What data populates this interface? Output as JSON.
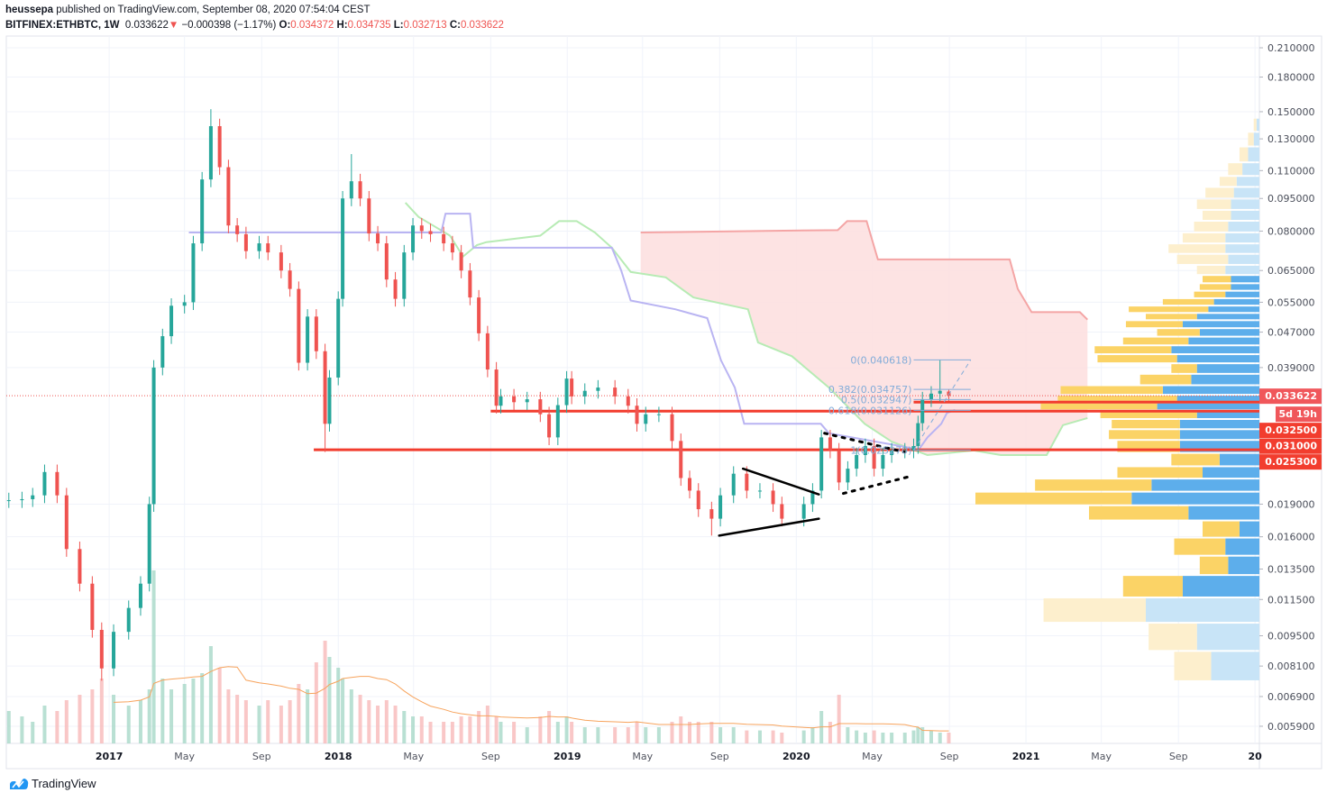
{
  "header": {
    "author": "heussepa",
    "published_text": "published on TradingView.com, September 08, 2020 07:54:04 CEST",
    "symbol": "BITFINEX:ETHBTC, 1W",
    "last": "0.033622",
    "change": "−0.000398 (−1.17%)",
    "o_label": "O:",
    "o": "0.034372",
    "h_label": "H:",
    "h": "0.034735",
    "l_label": "L:",
    "l": "0.032713",
    "c_label": "C:",
    "c": "0.033622"
  },
  "footer": {
    "brand": "TradingView"
  },
  "colors": {
    "up": "#26a69a",
    "down": "#ef5350",
    "vol_up": "#a8d8c8",
    "vol_down": "#f7b9b9",
    "vol_ma": "#f7a35c",
    "kijun": "#b9b4f2",
    "span_b": "#b7ebb4",
    "span_a": "#f4a5a5",
    "cloud": "#fde0e0",
    "level": "#f23d2e",
    "profile_up": "#5daeeb",
    "profile_down": "#fbd366",
    "profile_up_light": "#c8e4f7",
    "profile_down_light": "#fdefcd",
    "fib": "#82acd9"
  },
  "chart_data": {
    "type": "candlestick",
    "scale": "log",
    "xlim": [
      "2016-07-21",
      "2022-01-08"
    ],
    "ylim": [
      0.00539,
      0.2234
    ],
    "grid": true,
    "y_ticks": [
      "0.210000",
      "0.180000",
      "0.150000",
      "0.130000",
      "0.110000",
      "0.095000",
      "0.080000",
      "0.065000",
      "0.055000",
      "0.047000",
      "0.039000",
      "0.019000",
      "0.016000",
      "0.013500",
      "0.011500",
      "0.009500",
      "0.008100",
      "0.006900",
      "0.005900"
    ],
    "x_ticks": [
      {
        "date": "2017-01-01",
        "label": "2017",
        "year": true
      },
      {
        "date": "2017-05-01",
        "label": "May"
      },
      {
        "date": "2017-09-01",
        "label": "Sep"
      },
      {
        "date": "2018-01-01",
        "label": "2018",
        "year": true
      },
      {
        "date": "2018-05-01",
        "label": "May"
      },
      {
        "date": "2018-09-01",
        "label": "Sep"
      },
      {
        "date": "2019-01-01",
        "label": "2019",
        "year": true
      },
      {
        "date": "2019-05-01",
        "label": "May"
      },
      {
        "date": "2019-09-01",
        "label": "Sep"
      },
      {
        "date": "2020-01-01",
        "label": "2020",
        "year": true
      },
      {
        "date": "2020-05-01",
        "label": "May"
      },
      {
        "date": "2020-09-01",
        "label": "Sep"
      },
      {
        "date": "2021-01-01",
        "label": "2021",
        "year": true
      },
      {
        "date": "2021-05-01",
        "label": "May"
      },
      {
        "date": "2021-09-01",
        "label": "Sep"
      },
      {
        "date": "2022-01-01",
        "label": "20",
        "year": true
      }
    ],
    "candles_columns": [
      "date",
      "close",
      "volume",
      "high",
      "low"
    ],
    "candles": [
      [
        "2016-07-25",
        0.0194,
        30
      ],
      [
        "2016-08-15",
        0.0195,
        25
      ],
      [
        "2016-09-01",
        0.0199,
        20
      ],
      [
        "2016-09-20",
        0.0225,
        35
      ],
      [
        "2016-10-10",
        0.0199,
        30
      ],
      [
        "2016-10-25",
        0.015,
        40
      ],
      [
        "2016-11-15",
        0.0125,
        45
      ],
      [
        "2016-12-05",
        0.0098,
        50
      ],
      [
        "2016-12-20",
        0.008,
        60,
        null,
        0.0075
      ],
      [
        "2017-01-08",
        0.0097,
        45
      ],
      [
        "2017-02-01",
        0.011,
        35
      ],
      [
        "2017-02-20",
        0.0125,
        40
      ],
      [
        "2017-03-06",
        0.019,
        50
      ],
      [
        "2017-03-13",
        0.039,
        160
      ],
      [
        "2017-03-27",
        0.046,
        60
      ],
      [
        "2017-04-10",
        0.054,
        50
      ],
      [
        "2017-05-01",
        0.055,
        55
      ],
      [
        "2017-05-15",
        0.075,
        60
      ],
      [
        "2017-05-29",
        0.105,
        65
      ],
      [
        "2017-06-12",
        0.139,
        90,
        0.152
      ],
      [
        "2017-06-26",
        0.112,
        70
      ],
      [
        "2017-07-10",
        0.0824,
        50
      ],
      [
        "2017-07-24",
        0.0787,
        45
      ],
      [
        "2017-08-07",
        0.072,
        40
      ],
      [
        "2017-08-28",
        0.075,
        35
      ],
      [
        "2017-09-11",
        0.0715,
        40
      ],
      [
        "2017-10-02",
        0.065,
        35
      ],
      [
        "2017-10-16",
        0.059,
        40
      ],
      [
        "2017-10-30",
        0.04,
        55
      ],
      [
        "2017-11-13",
        0.051,
        50
      ],
      [
        "2017-11-27",
        0.0425,
        75
      ],
      [
        "2017-12-11",
        0.029,
        95,
        null,
        0.025
      ],
      [
        "2017-12-18",
        0.037,
        80
      ],
      [
        "2018-01-01",
        0.056,
        70
      ],
      [
        "2018-01-08",
        0.095,
        60
      ],
      [
        "2018-01-22",
        0.104,
        50,
        0.12
      ],
      [
        "2018-02-05",
        0.095,
        45
      ],
      [
        "2018-02-19",
        0.079,
        40
      ],
      [
        "2018-03-05",
        0.075,
        35
      ],
      [
        "2018-03-19",
        0.062,
        40
      ],
      [
        "2018-04-02",
        0.056,
        35
      ],
      [
        "2018-04-16",
        0.0715,
        30
      ],
      [
        "2018-04-30",
        0.0824,
        25
      ],
      [
        "2018-05-14",
        0.08,
        25
      ],
      [
        "2018-05-28",
        0.0787,
        20
      ],
      [
        "2018-06-18",
        0.075,
        20
      ],
      [
        "2018-07-02",
        0.0715,
        20
      ],
      [
        "2018-07-16",
        0.065,
        25
      ],
      [
        "2018-07-30",
        0.0564,
        25
      ],
      [
        "2018-08-13",
        0.0467,
        30
      ],
      [
        "2018-08-27",
        0.0386,
        35
      ],
      [
        "2018-09-10",
        0.0319,
        25
      ],
      [
        "2018-09-17",
        0.0335,
        20
      ],
      [
        "2018-10-08",
        0.0325,
        20
      ],
      [
        "2018-10-29",
        0.033,
        15
      ],
      [
        "2018-11-19",
        0.0305,
        25
      ],
      [
        "2018-12-03",
        0.027,
        30
      ],
      [
        "2018-12-17",
        0.032,
        20
      ],
      [
        "2018-12-31",
        0.0368,
        25
      ],
      [
        "2019-01-08",
        0.0335,
        20
      ],
      [
        "2019-01-29",
        0.0345,
        15
      ],
      [
        "2019-02-19",
        0.0351,
        15
      ],
      [
        "2019-03-18",
        0.0335,
        15
      ],
      [
        "2019-04-08",
        0.0319,
        15
      ],
      [
        "2019-04-22",
        0.029,
        20
      ],
      [
        "2019-05-06",
        0.0305,
        15
      ],
      [
        "2019-05-27",
        0.0305,
        15
      ],
      [
        "2019-06-17",
        0.0265,
        20
      ],
      [
        "2019-07-01",
        0.0218,
        25
      ],
      [
        "2019-07-15",
        0.0204,
        20
      ],
      [
        "2019-07-29",
        0.0185,
        20
      ],
      [
        "2019-08-19",
        0.0176,
        20,
        null,
        0.0161
      ],
      [
        "2019-09-02",
        0.0199,
        15
      ],
      [
        "2019-09-23",
        0.0223,
        15
      ],
      [
        "2019-10-14",
        0.0204,
        12
      ],
      [
        "2019-11-04",
        0.0204,
        12
      ],
      [
        "2019-11-25",
        0.019,
        12
      ],
      [
        "2019-12-09",
        0.0176,
        10
      ],
      [
        "2020-01-13",
        0.019,
        12
      ],
      [
        "2020-01-27",
        0.0204,
        15
      ],
      [
        "2020-02-10",
        0.027,
        30
      ],
      [
        "2020-02-24",
        0.0252,
        20
      ],
      [
        "2020-03-09",
        0.0213,
        45
      ],
      [
        "2020-03-23",
        0.0229,
        15
      ],
      [
        "2020-04-06",
        0.0246,
        12
      ],
      [
        "2020-04-20",
        0.0258,
        10
      ],
      [
        "2020-05-04",
        0.0229,
        12
      ],
      [
        "2020-05-18",
        0.0246,
        10
      ],
      [
        "2020-06-01",
        0.0252,
        10
      ],
      [
        "2020-06-22",
        0.0252,
        10
      ],
      [
        "2020-07-06",
        0.0258,
        12
      ],
      [
        "2020-07-13",
        0.0291,
        15
      ],
      [
        "2020-07-20",
        0.033,
        15
      ],
      [
        "2020-08-03",
        0.034,
        12
      ],
      [
        "2020-08-17",
        0.0345,
        10,
        0.040618
      ],
      [
        "2020-08-31",
        0.033622,
        10,
        0.034735,
        0.032713,
        0.034372
      ]
    ],
    "current_price": 0.033622,
    "current_price_label": "0.033622",
    "countdown_label": "5d 19h",
    "kijun": [
      [
        "2017-05-08",
        0.0794
      ],
      [
        "2018-06-14",
        0.0794
      ],
      [
        "2018-06-21",
        0.0877
      ],
      [
        "2018-07-30",
        0.0877
      ],
      [
        "2018-08-04",
        0.0733
      ],
      [
        "2019-03-13",
        0.0733
      ],
      [
        "2019-03-28",
        0.065
      ],
      [
        "2019-04-12",
        0.0555
      ],
      [
        "2019-06-22",
        0.053
      ],
      [
        "2019-08-12",
        0.0506
      ],
      [
        "2019-09-03",
        0.0405
      ],
      [
        "2019-09-25",
        0.0351
      ],
      [
        "2019-10-10",
        0.029
      ],
      [
        "2020-02-09",
        0.029
      ],
      [
        "2020-02-22",
        0.0276
      ],
      [
        "2020-06-15",
        0.0258
      ],
      [
        "2020-07-14",
        0.0253
      ],
      [
        "2020-07-28",
        0.027
      ],
      [
        "2020-08-19",
        0.029
      ],
      [
        "2020-08-28",
        0.0307
      ],
      [
        "2020-09-10",
        0.0312
      ]
    ],
    "span_b": [
      [
        "2018-04-18",
        0.0929
      ],
      [
        "2018-05-09",
        0.0862
      ],
      [
        "2018-06-01",
        0.0824
      ],
      [
        "2018-06-28",
        0.0781
      ],
      [
        "2018-07-19",
        0.07
      ],
      [
        "2018-08-10",
        0.0743
      ],
      [
        "2018-08-25",
        0.0755
      ],
      [
        "2018-11-19",
        0.0781
      ],
      [
        "2018-12-19",
        0.0843
      ],
      [
        "2019-01-16",
        0.0843
      ],
      [
        "2019-02-14",
        0.0794
      ],
      [
        "2019-03-13",
        0.0733
      ],
      [
        "2019-04-12",
        0.0645
      ],
      [
        "2019-04-28",
        0.064
      ],
      [
        "2019-06-07",
        0.0627
      ],
      [
        "2019-07-21",
        0.0564
      ],
      [
        "2019-10-16",
        0.053
      ],
      [
        "2019-11-01",
        0.0445
      ],
      [
        "2019-12-25",
        0.0414
      ],
      [
        "2020-02-22",
        0.0351
      ],
      [
        "2020-04-19",
        0.029
      ],
      [
        "2020-06-01",
        0.0264
      ],
      [
        "2020-07-28",
        0.0246
      ],
      [
        "2020-10-10",
        0.0252
      ],
      [
        "2020-11-22",
        0.0246
      ],
      [
        "2021-02-03",
        0.0246
      ],
      [
        "2021-03-01",
        0.0288
      ],
      [
        "2021-04-09",
        0.0299
      ]
    ],
    "span_a": [
      [
        "2019-04-28",
        0.0794
      ],
      [
        "2019-11-13",
        0.0801
      ],
      [
        "2020-03-07",
        0.0804
      ],
      [
        "2020-03-22",
        0.0843
      ],
      [
        "2020-04-22",
        0.0843
      ],
      [
        "2020-05-10",
        0.0689
      ],
      [
        "2020-12-06",
        0.0689
      ],
      [
        "2020-12-19",
        0.059
      ],
      [
        "2021-01-10",
        0.0522
      ],
      [
        "2021-03-28",
        0.0522
      ],
      [
        "2021-04-09",
        0.0502
      ]
    ],
    "horizontal_levels": [
      {
        "price": 0.0325,
        "label": "0.032500",
        "from": "2020-07-06"
      },
      {
        "price": 0.031,
        "label": "0.031000",
        "from": "2018-09-01"
      },
      {
        "price": 0.0253,
        "label": "0.025300",
        "from": "2017-11-23"
      }
    ],
    "trendlines": [
      {
        "style": "solid",
        "points": [
          [
            "2019-10-08",
            0.0229
          ],
          [
            "2020-02-06",
            0.02
          ]
        ]
      },
      {
        "style": "solid",
        "points": [
          [
            "2019-08-31",
            0.0161
          ],
          [
            "2020-02-06",
            0.0176
          ]
        ]
      },
      {
        "style": "dotted",
        "points": [
          [
            "2020-02-15",
            0.0276
          ],
          [
            "2020-06-21",
            0.025
          ]
        ]
      },
      {
        "style": "dotted",
        "points": [
          [
            "2020-03-16",
            0.0201
          ],
          [
            "2020-07-01",
            0.022
          ]
        ]
      }
    ],
    "fibonacci": {
      "from": "2020-07-06",
      "to": "2020-10-05",
      "diagonal": [
        [
          "2020-07-06",
          0.02527
        ],
        [
          "2020-10-05",
          0.040618
        ]
      ],
      "levels": [
        {
          "ratio": "0",
          "price": 0.040618,
          "label": "0(0.040618)"
        },
        {
          "ratio": "0.382",
          "price": 0.034757,
          "label": "0.382(0.034757)"
        },
        {
          "ratio": "0.5",
          "price": 0.032947,
          "label": "0.5(0.032947)"
        },
        {
          "ratio": "0.618",
          "price": 0.031126,
          "label": "0.618(0.031126)"
        },
        {
          "ratio": "1",
          "price": 0.02527,
          "label": "1(0.025270)"
        }
      ]
    },
    "volume_profile_columns": [
      "price",
      "up_volume_pct",
      "down_volume_pct",
      "value_area"
    ],
    "volume_profile": [
      [
        0.0081,
        17,
        13,
        false
      ],
      [
        0.0095,
        22,
        17,
        false
      ],
      [
        0.0109,
        40,
        36,
        false
      ],
      [
        0.0124,
        27,
        21,
        true
      ],
      [
        0.0138,
        11,
        10,
        true
      ],
      [
        0.0152,
        12,
        18,
        true
      ],
      [
        0.0167,
        7,
        13,
        true
      ],
      [
        0.0182,
        25,
        35,
        true
      ],
      [
        0.0196,
        45,
        55,
        true
      ],
      [
        0.021,
        38,
        41,
        true
      ],
      [
        0.0225,
        20,
        30,
        true
      ],
      [
        0.0239,
        14,
        17,
        true
      ],
      [
        0.0259,
        28,
        22,
        true
      ],
      [
        0.0274,
        28,
        25,
        true
      ],
      [
        0.029,
        28,
        24,
        true
      ],
      [
        0.0305,
        22,
        34,
        true
      ],
      [
        0.0318,
        36,
        41,
        true
      ],
      [
        0.0331,
        29,
        42,
        true
      ],
      [
        0.0345,
        34,
        36,
        true
      ],
      [
        0.0366,
        24,
        18,
        true
      ],
      [
        0.0389,
        22,
        9,
        true
      ],
      [
        0.0409,
        29,
        28,
        true
      ],
      [
        0.0428,
        31,
        27,
        true
      ],
      [
        0.0449,
        25,
        23,
        true
      ],
      [
        0.0469,
        21,
        15,
        true
      ],
      [
        0.0491,
        27,
        20,
        true
      ],
      [
        0.051,
        22,
        18,
        true
      ],
      [
        0.053,
        18,
        28,
        true
      ],
      [
        0.0551,
        16,
        18,
        true
      ],
      [
        0.0573,
        12,
        11,
        true
      ],
      [
        0.0596,
        10,
        11,
        true
      ],
      [
        0.062,
        10,
        10,
        true
      ],
      [
        0.065,
        12,
        10,
        false
      ],
      [
        0.069,
        11,
        18,
        false
      ],
      [
        0.073,
        12,
        20,
        false
      ],
      [
        0.077,
        12,
        15,
        false
      ],
      [
        0.082,
        11,
        12,
        false
      ],
      [
        0.087,
        10,
        10,
        false
      ],
      [
        0.092,
        10,
        12,
        false
      ],
      [
        0.098,
        9,
        10,
        false
      ],
      [
        0.104,
        8,
        6,
        false
      ],
      [
        0.11,
        6,
        5,
        false
      ],
      [
        0.12,
        4,
        3,
        false
      ],
      [
        0.13,
        2,
        2,
        false
      ],
      [
        0.14,
        1,
        1,
        false
      ]
    ]
  }
}
